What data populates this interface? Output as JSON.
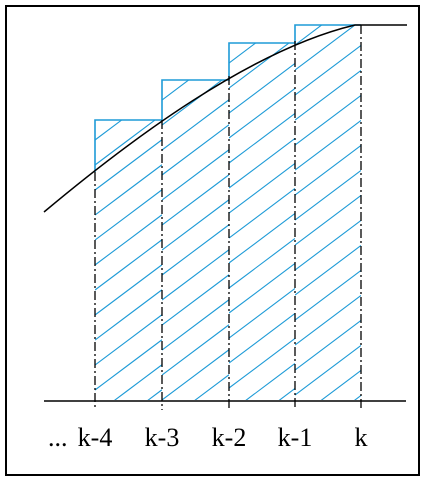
{
  "diagram": {
    "axis_labels": [
      "...",
      "k-4",
      "k-3",
      "k-2",
      "k-1",
      "k"
    ],
    "colors": {
      "border": "#000000",
      "curve": "#000000",
      "axis": "#000000",
      "steps": "#1E9BD7",
      "hatch": "#1E9BD7",
      "dashdot": "#000000"
    }
  }
}
